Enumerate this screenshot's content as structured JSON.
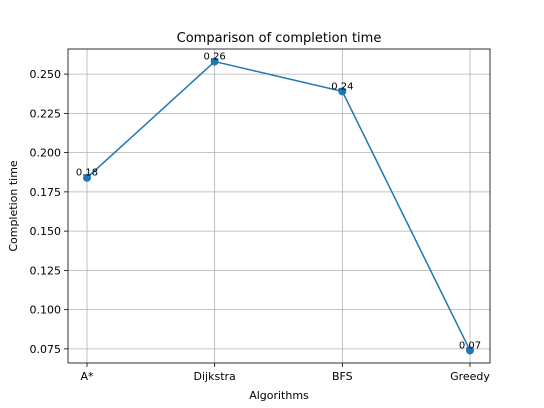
{
  "chart_data": {
    "type": "line",
    "title": "Comparison of completion time",
    "xlabel": "Algorithms",
    "ylabel": "Completion time",
    "categories": [
      "A*",
      "Dijkstra",
      "BFS",
      "Greedy"
    ],
    "series": [
      {
        "values": [
          0.184,
          0.258,
          0.239,
          0.074
        ],
        "data_labels": [
          "0.18",
          "0.26",
          "0.24",
          "0.07"
        ],
        "color": "#1f77b4",
        "marker": "circle"
      }
    ],
    "ylim": [
      0.066,
      0.266
    ],
    "yticks": [
      0.075,
      0.1,
      0.125,
      0.15,
      0.175,
      0.2,
      0.225,
      0.25
    ],
    "ytick_labels": [
      "0.075",
      "0.100",
      "0.125",
      "0.150",
      "0.175",
      "0.200",
      "0.225",
      "0.250"
    ],
    "grid": true,
    "legend": "none"
  }
}
